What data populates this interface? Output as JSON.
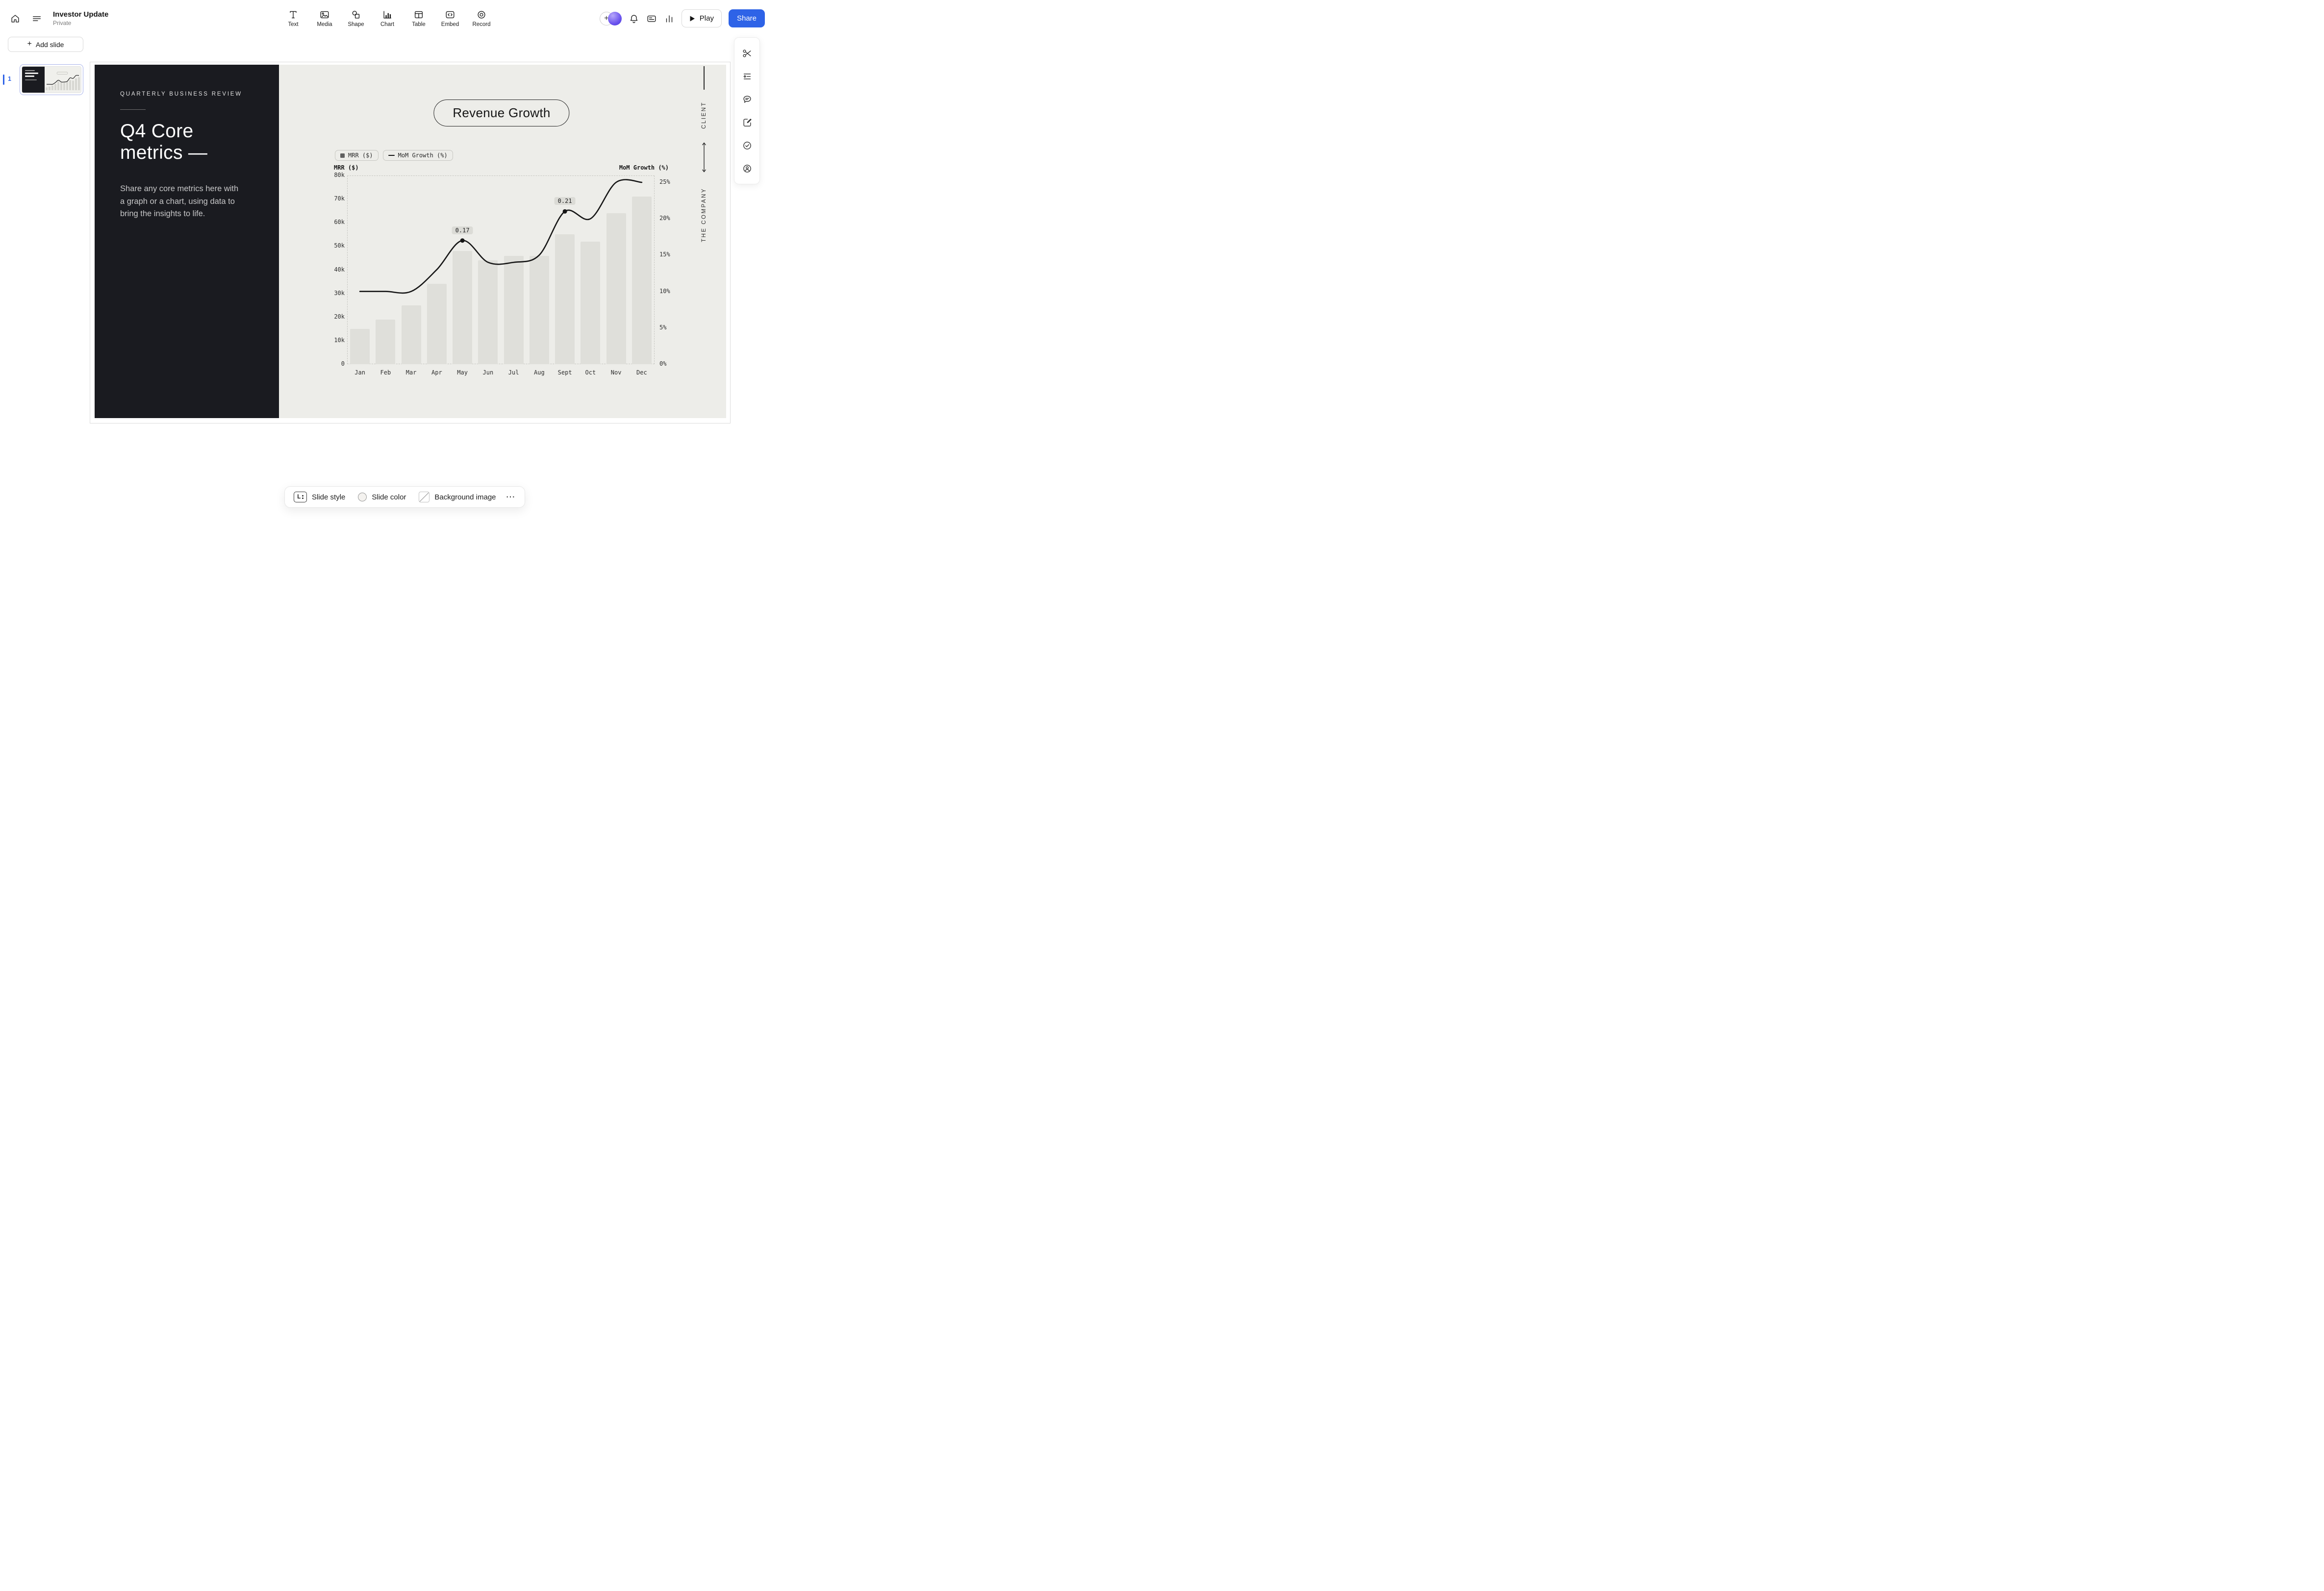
{
  "colors": {
    "accent_blue": "#2E63E7",
    "slide_dark_bg": "#1A1B20",
    "slide_light_bg": "#EDEDE9",
    "bar_fill": "#DFDFDA",
    "line_stroke": "#161616"
  },
  "header": {
    "title": "Investor Update",
    "privacy": "Private",
    "tools": [
      {
        "label": "Text",
        "icon": "text-icon"
      },
      {
        "label": "Media",
        "icon": "media-icon"
      },
      {
        "label": "Shape",
        "icon": "shape-icon"
      },
      {
        "label": "Chart",
        "icon": "chart-icon"
      },
      {
        "label": "Table",
        "icon": "table-icon"
      },
      {
        "label": "Embed",
        "icon": "embed-icon"
      },
      {
        "label": "Record",
        "icon": "record-icon"
      }
    ],
    "play_label": "Play",
    "share_label": "Share"
  },
  "sidebar": {
    "add_slide_label": "Add slide",
    "slide_number": "1"
  },
  "right_toolbar": {
    "icons": [
      "scissors-icon",
      "outline-icon",
      "comment-icon",
      "notes-icon",
      "check-circle-icon",
      "person-circle-icon"
    ]
  },
  "slide": {
    "eyebrow": "QUARTERLY BUSINESS REVIEW",
    "title_line1": "Q4 Core",
    "title_line2": "metrics —",
    "body": "Share any core metrics here with a graph or a chart, using data to bring the insights to life.",
    "chart_title": "Revenue Growth",
    "side_label_top": "CLIENT",
    "side_label_bottom": "THE COMPANY"
  },
  "chart_data": {
    "type": "bar+line",
    "title": "Revenue Growth",
    "categories": [
      "Jan",
      "Feb",
      "Mar",
      "Apr",
      "May",
      "Jun",
      "Jul",
      "Aug",
      "Sept",
      "Oct",
      "Nov",
      "Dec"
    ],
    "series": [
      {
        "name": "MRR ($)",
        "type": "bar",
        "axis": "left",
        "values": [
          15000,
          19000,
          25000,
          34000,
          48000,
          44000,
          46000,
          46000,
          55000,
          52000,
          64000,
          71000
        ]
      },
      {
        "name": "MoM Growth (%)",
        "type": "line",
        "axis": "right",
        "values": [
          0.1,
          0.1,
          0.1,
          0.13,
          0.17,
          0.14,
          0.14,
          0.15,
          0.21,
          0.2,
          0.25,
          0.25
        ]
      }
    ],
    "left_axis": {
      "label": "MRR ($)",
      "min": 0,
      "max": 80000,
      "ticks": [
        {
          "v": 80000,
          "t": "80k"
        },
        {
          "v": 70000,
          "t": "70k"
        },
        {
          "v": 60000,
          "t": "60k"
        },
        {
          "v": 50000,
          "t": "50k"
        },
        {
          "v": 40000,
          "t": "40k"
        },
        {
          "v": 30000,
          "t": "30k"
        },
        {
          "v": 20000,
          "t": "20k"
        },
        {
          "v": 10000,
          "t": "10k"
        },
        {
          "v": 0,
          "t": "0"
        }
      ]
    },
    "right_axis": {
      "label": "MoM Growth (%)",
      "min": 0,
      "max": 0.26,
      "ticks": [
        {
          "v": 0.25,
          "t": "25%"
        },
        {
          "v": 0.2,
          "t": "20%"
        },
        {
          "v": 0.15,
          "t": "15%"
        },
        {
          "v": 0.1,
          "t": "10%"
        },
        {
          "v": 0.05,
          "t": "5%"
        },
        {
          "v": 0,
          "t": "0%"
        }
      ]
    },
    "annotations": [
      {
        "index": 4,
        "text": "0.17"
      },
      {
        "index": 8,
        "text": "0.21"
      }
    ],
    "legend": [
      "MRR ($)",
      "MoM Growth (%)"
    ],
    "legend_position": "top-left",
    "grid": false
  },
  "bottom_toolbar": {
    "style_badge": "L",
    "style_label": "Slide style",
    "color_label": "Slide color",
    "background_label": "Background image",
    "more_label": "⋯"
  }
}
